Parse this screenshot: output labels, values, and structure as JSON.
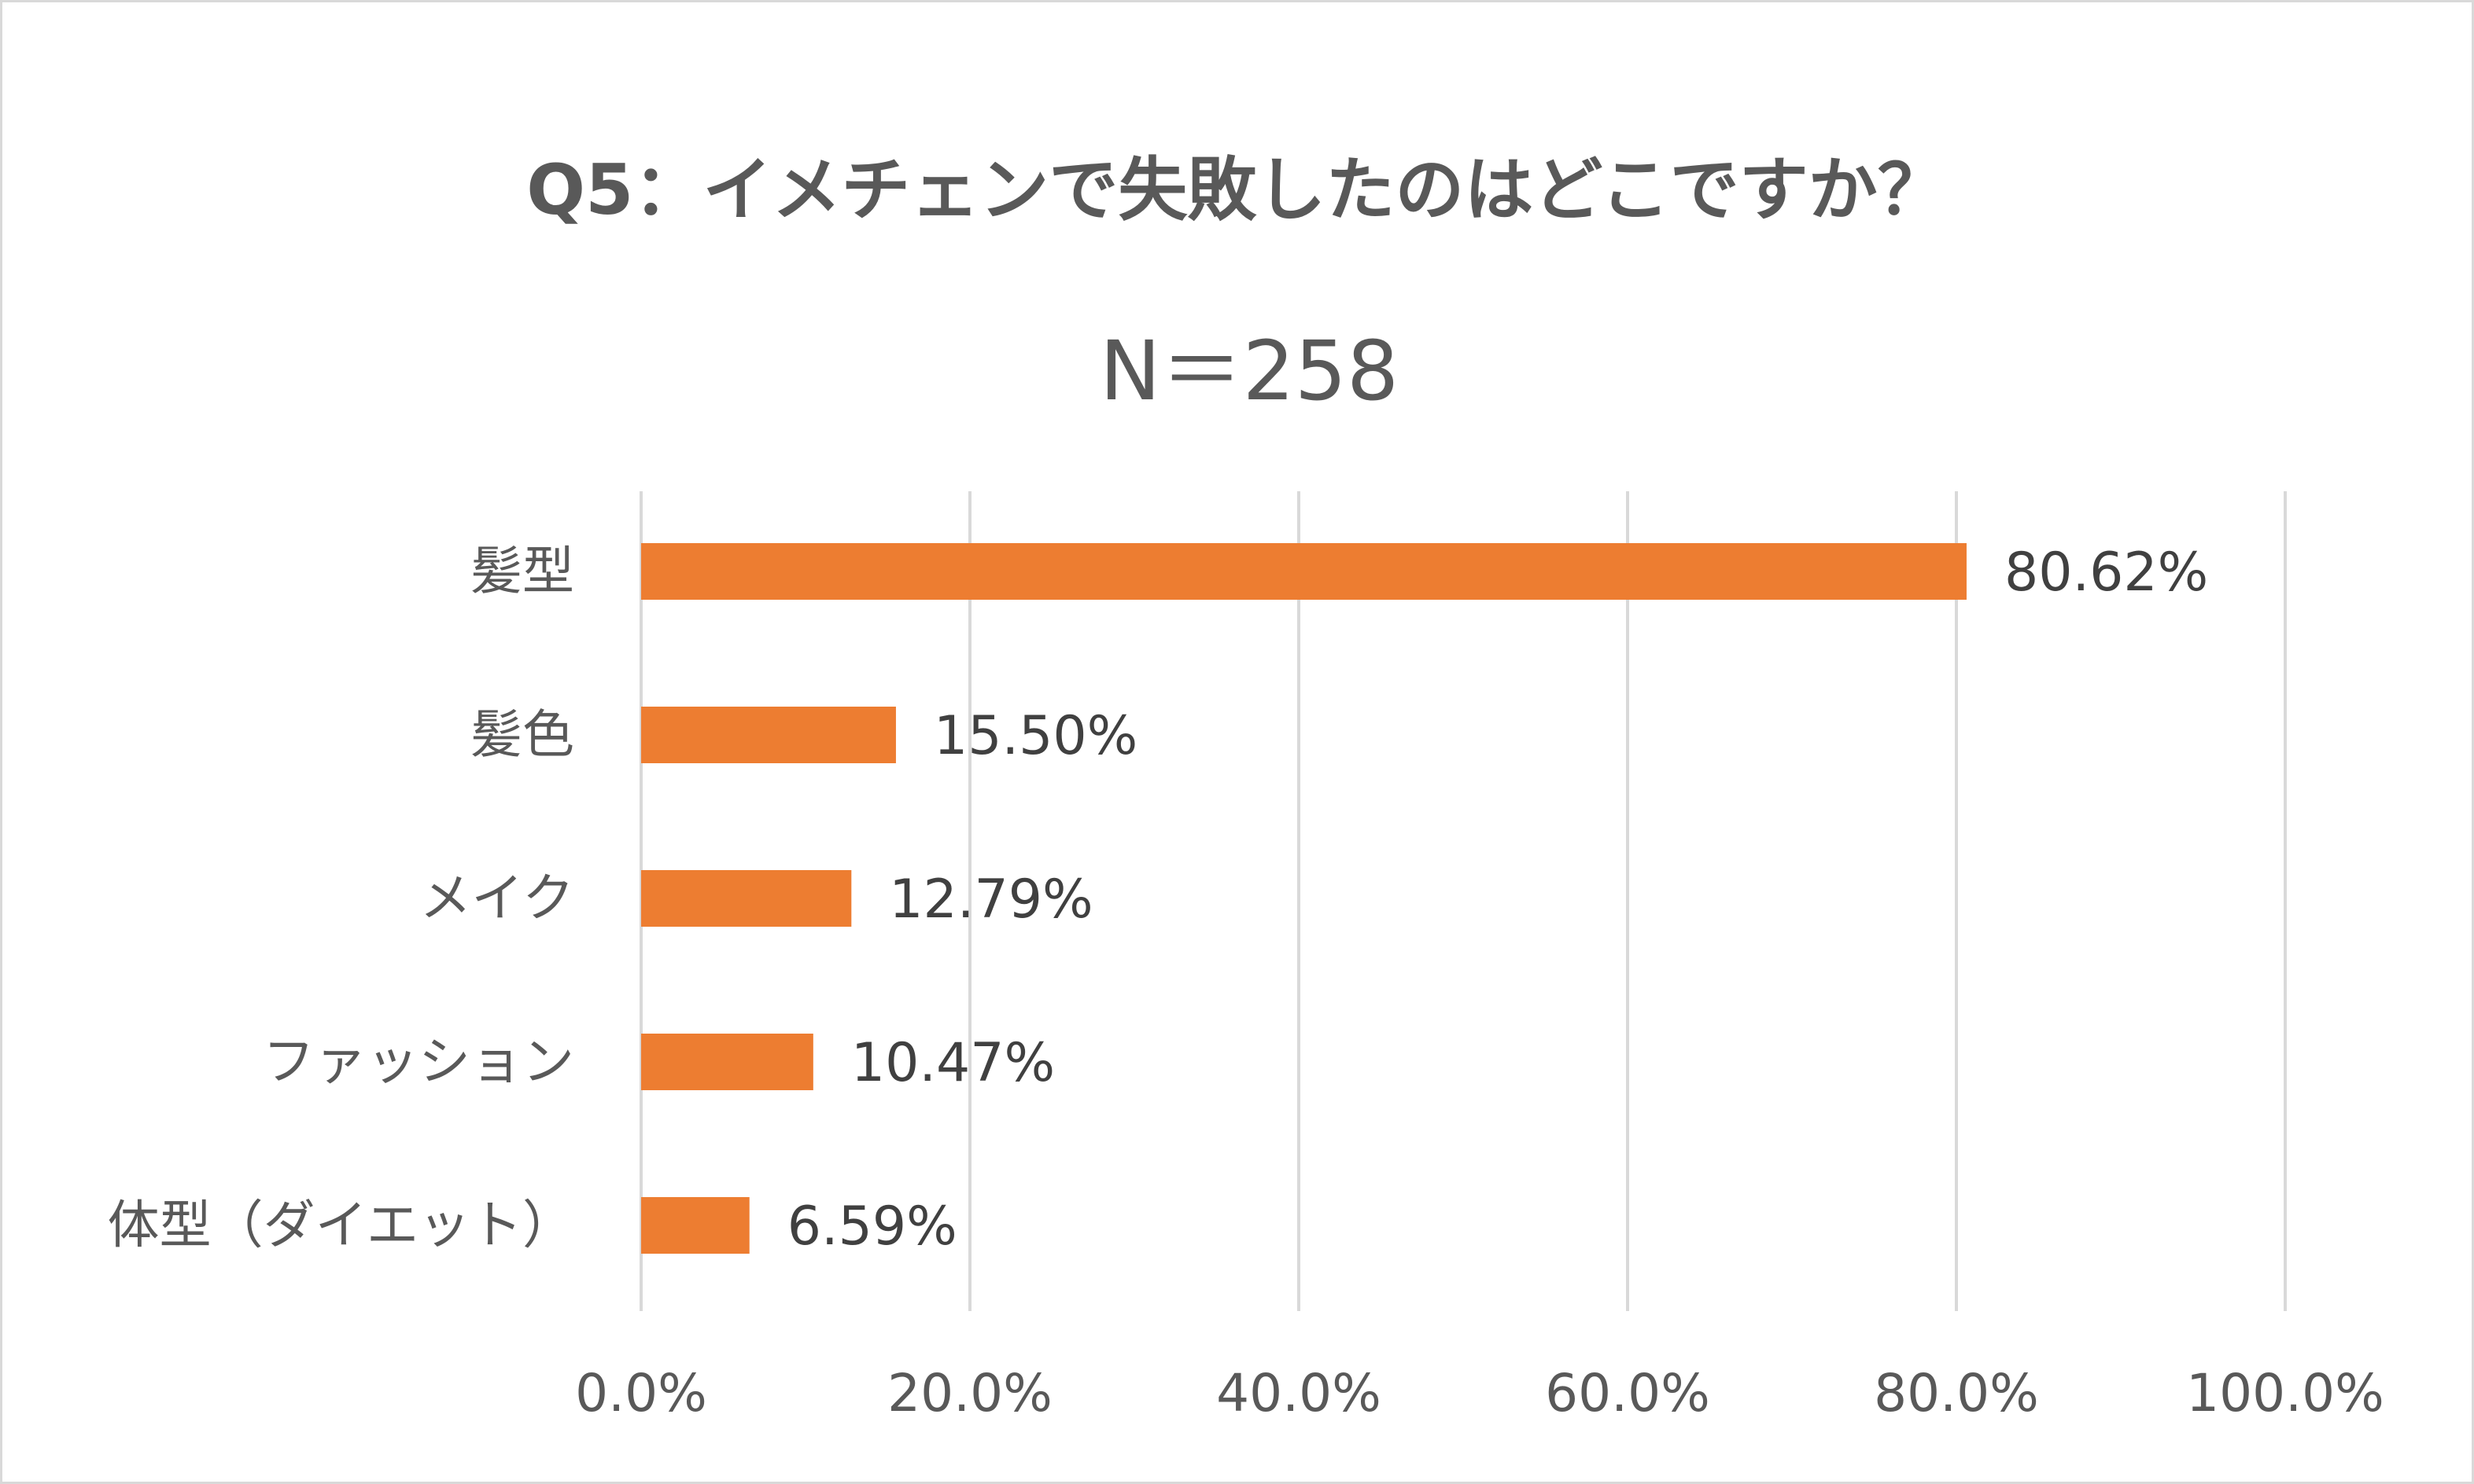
{
  "chart_data": {
    "type": "bar",
    "orientation": "horizontal",
    "title": "Q5：イメチェンで失敗したのはどこですか？",
    "subtitle": "N＝258",
    "categories": [
      "髪型",
      "髪色",
      "メイク",
      "ファッション",
      "体型（ダイエット）"
    ],
    "values": [
      80.62,
      15.5,
      12.79,
      10.47,
      6.59
    ],
    "data_labels": [
      "80.62%",
      "15.50%",
      "12.79%",
      "10.47%",
      "6.59%"
    ],
    "xlim": [
      0,
      100
    ],
    "x_ticks": [
      0,
      20,
      40,
      60,
      80,
      100
    ],
    "x_tick_labels": [
      "0.0%",
      "20.0%",
      "40.0%",
      "60.0%",
      "80.0%",
      "100.0%"
    ],
    "grid": true,
    "legend": "none",
    "colors": {
      "bar": "#ed7d31",
      "text": "#595959",
      "data_label": "#404040",
      "grid": "#d9d9d9",
      "border": "#d9d9d9"
    }
  }
}
